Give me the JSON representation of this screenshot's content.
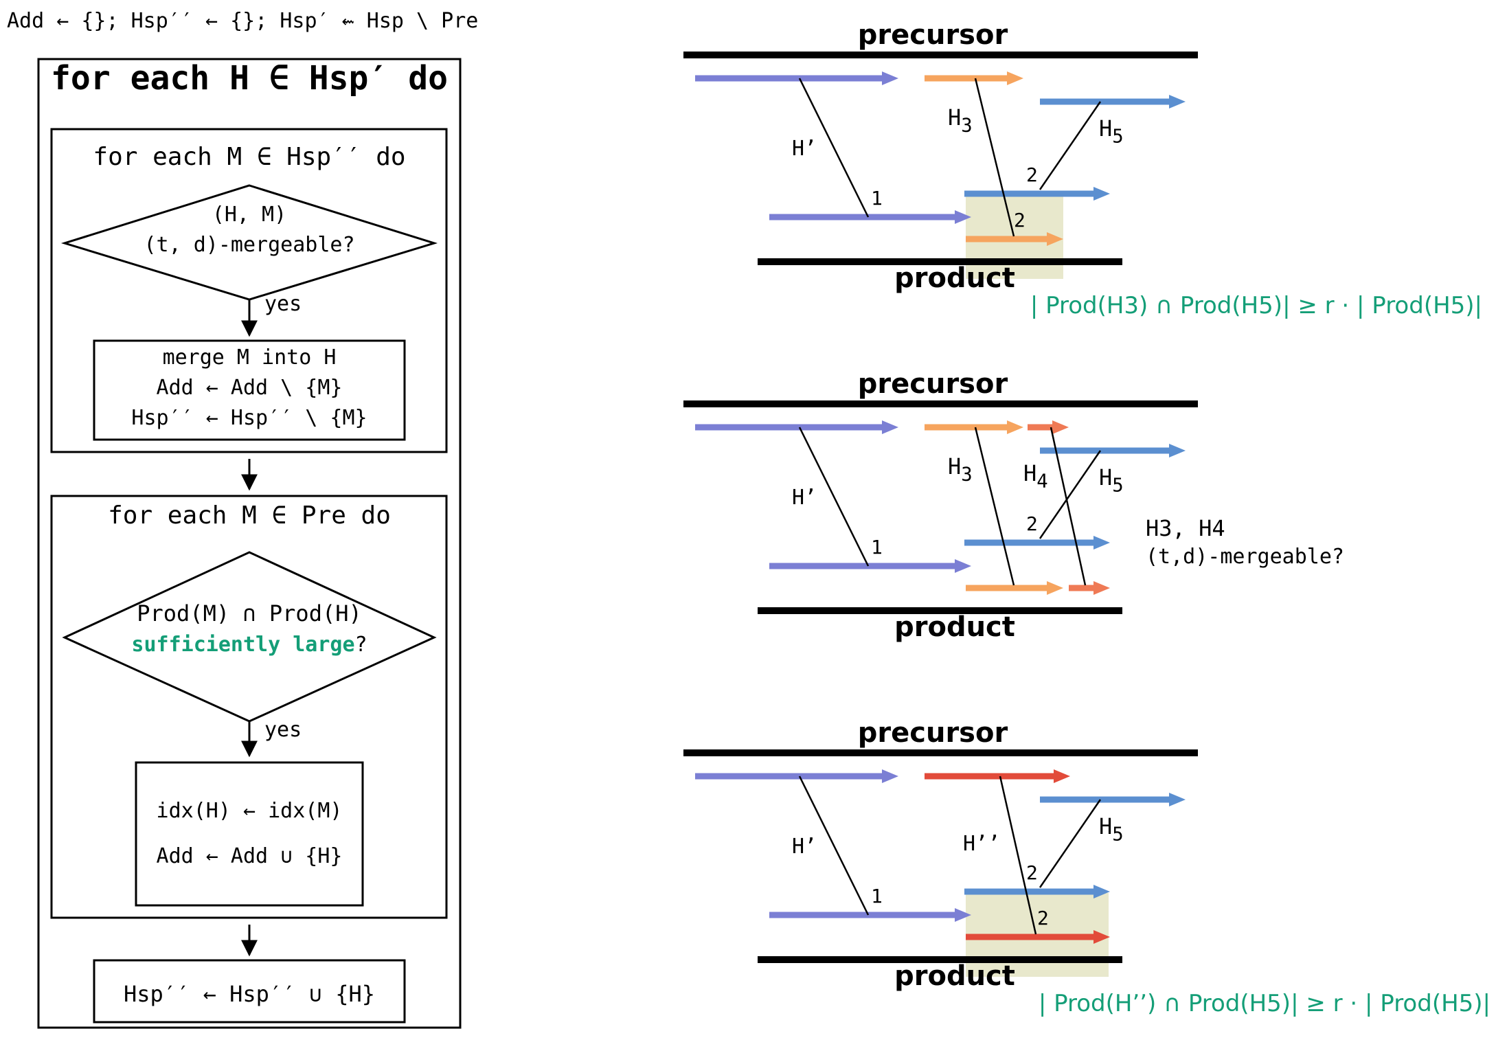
{
  "flowchart": {
    "init_line": "Add ← {}; Hsp′′ ← {}; Hsp′ ⇜ Hsp \\ Pre",
    "outer_loop": "for each H ∈ Hsp′ do",
    "inner_loop_1": "for each M ∈ Hsp′′ do",
    "decision_1_line1": "(H, M)",
    "decision_1_line2": "(t, d)-mergeable?",
    "yes_1": "yes",
    "merge_box": {
      "line1": "merge M into H",
      "line2": "Add ← Add \\ {M}",
      "line3": "Hsp′′ ← Hsp′′ \\ {M}"
    },
    "inner_loop_2": "for each M ∈ Pre do",
    "decision_2_line1": "Prod(M) ∩ Prod(H)",
    "decision_2_highlight": "sufficiently large",
    "decision_2_suffix": "?",
    "yes_2": "yes",
    "idx_box": {
      "line1": "idx(H) ← idx(M)",
      "line2": "Add ← Add ∪ {H}"
    },
    "final_box": "Hsp′′ ← Hsp′′ ∪ {H}"
  },
  "panels": [
    {
      "precursor_label": "precursor",
      "product_label": "product",
      "labels": {
        "h_prime": "H’",
        "h3": "H",
        "h3_sub": "3",
        "h5": "H",
        "h5_sub": "5",
        "n1": "1",
        "n2a": "2",
        "n2b": "2"
      },
      "formula": "| Prod(H3) ∩ Prod(H5)| ≥ r · | Prod(H5)|"
    },
    {
      "precursor_label": "precursor",
      "product_label": "product",
      "labels": {
        "h_prime": "H’",
        "h3": "H",
        "h3_sub": "3",
        "h4": "H",
        "h4_sub": "4",
        "h5": "H",
        "h5_sub": "5",
        "n1": "1",
        "n2a": "2"
      },
      "question_line1": "H3, H4",
      "question_line2": "(t,d)-mergeable?"
    },
    {
      "precursor_label": "precursor",
      "product_label": "product",
      "labels": {
        "h_prime": "H’",
        "h_dprime": "H’’",
        "h5": "H",
        "h5_sub": "5",
        "n1": "1",
        "n2a": "2",
        "n2b": "2"
      },
      "formula": "| Prod(H’’) ∩ Prod(H5)| ≥ r · | Prod(H5)|"
    }
  ],
  "colors": {
    "purple": "#7b7fd4",
    "orange": "#f6a45e",
    "blue": "#5b8fd0",
    "red": "#e24b3a",
    "coral": "#ef7a55",
    "highlight": "#e8e8cc",
    "green": "#149e77"
  }
}
